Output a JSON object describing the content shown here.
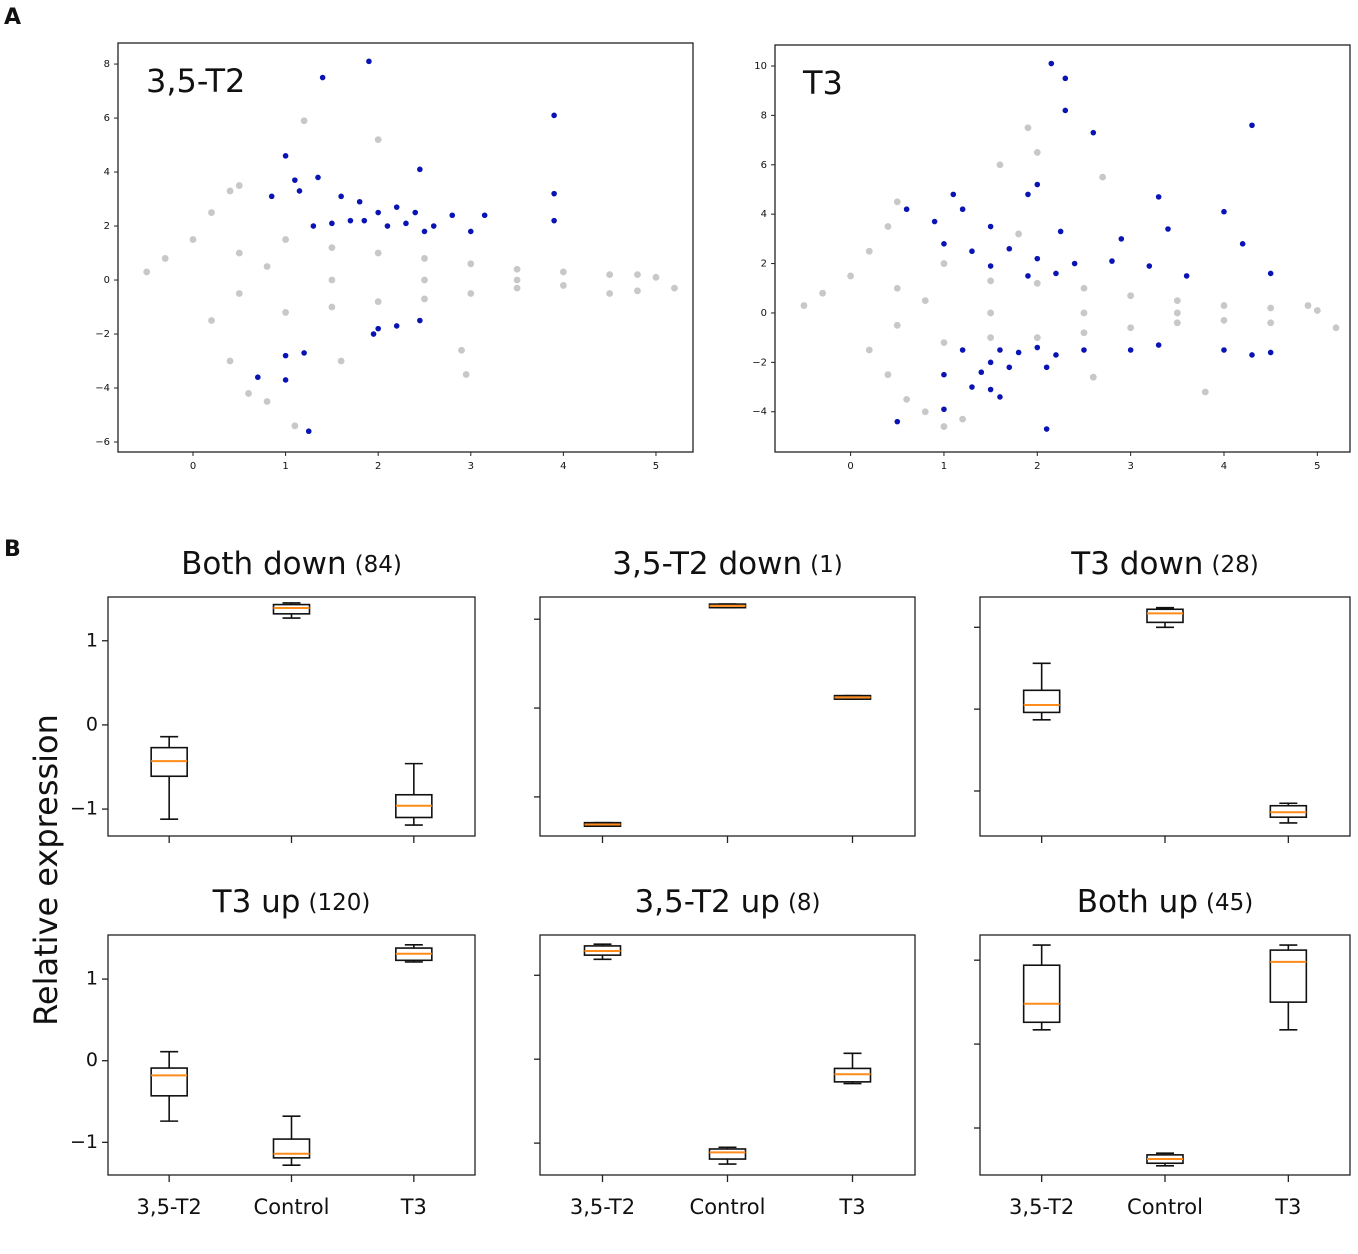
{
  "figure": {
    "panels": [
      "A",
      "B"
    ],
    "ylabel": "Relative expression"
  },
  "chart_data": [
    {
      "type": "scatter",
      "label": "3,5-T2",
      "xlim": [
        -0.81,
        5.4
      ],
      "ylim": [
        -6.37,
        8.78
      ],
      "xticks": [
        0,
        1,
        2,
        3,
        4,
        5
      ],
      "yticks": [
        {
          "value": -6,
          "label": "−6"
        },
        {
          "value": -4,
          "label": "−4"
        },
        {
          "value": -2,
          "label": "−2"
        },
        0,
        2,
        4,
        6,
        8
      ],
      "series": [
        {
          "color": "#c8c8c8",
          "x": [
            -0.5,
            -0.3,
            0,
            0.2,
            0.4,
            0.5,
            0.2,
            0.4,
            0.6,
            0.8,
            0.5,
            0.5,
            1,
            1,
            1.5,
            1.5,
            2,
            2,
            2.5,
            2.5,
            3,
            3,
            3.5,
            3.5,
            4,
            4,
            4.5,
            4.5,
            5,
            5.2,
            1.5,
            2.5,
            3.5,
            0.8,
            1.2,
            2,
            1.6,
            2.9,
            2.95,
            1.1,
            4.8,
            4.8
          ],
          "values": [
            0.3,
            0.8,
            1.5,
            2.5,
            3.3,
            3.5,
            -1.5,
            -3,
            -4.2,
            -4.5,
            1,
            -0.5,
            1.5,
            -1.2,
            1.2,
            -1,
            1,
            -0.8,
            0.8,
            -0.7,
            0.6,
            -0.5,
            0.4,
            -0.3,
            0.3,
            -0.2,
            0.2,
            -0.5,
            0.1,
            -0.3,
            0,
            0,
            0,
            0.5,
            5.9,
            5.2,
            -3,
            -2.6,
            -3.5,
            -5.4,
            0.2,
            -0.4
          ]
        },
        {
          "color": "#0a14b4",
          "x": [
            1.4,
            1.9,
            3.9,
            1,
            2.45,
            1.1,
            1.35,
            1.15,
            3.9,
            0.85,
            1.6,
            1.8,
            2,
            2.2,
            2.4,
            1.7,
            1.85,
            2.1,
            2.3,
            2.6,
            2.8,
            3.15,
            3.9,
            2.5,
            3,
            1.3,
            1.5,
            2,
            2.2,
            2.45,
            1.95,
            1,
            1.2,
            0.7,
            1,
            1.25
          ],
          "values": [
            7.5,
            8.1,
            6.1,
            4.6,
            4.1,
            3.7,
            3.8,
            3.3,
            3.2,
            3.1,
            3.1,
            2.9,
            2.5,
            2.7,
            2.5,
            2.2,
            2.2,
            2,
            2.1,
            2,
            2.4,
            2.4,
            2.2,
            1.8,
            1.8,
            2,
            2.1,
            -1.8,
            -1.7,
            -1.5,
            -2,
            -2.8,
            -2.7,
            -3.6,
            -3.7,
            -5.6
          ]
        }
      ]
    },
    {
      "type": "scatter",
      "label": "T3",
      "xlim": [
        -0.81,
        5.35
      ],
      "ylim": [
        -5.63,
        10.85
      ],
      "xticks": [
        0,
        1,
        2,
        3,
        4,
        5
      ],
      "yticks": [
        {
          "value": -4,
          "label": "−4"
        },
        {
          "value": -2,
          "label": "−2"
        },
        0,
        2,
        4,
        6,
        8,
        10
      ],
      "series": [
        {
          "color": "#c8c8c8",
          "x": [
            -0.5,
            -0.3,
            0,
            0.2,
            0.4,
            0.5,
            0.2,
            0.4,
            0.6,
            0.8,
            1,
            0.5,
            0.5,
            1,
            1,
            1.5,
            1.5,
            2,
            2,
            2.5,
            2.5,
            3,
            3,
            3.5,
            3.5,
            4,
            4,
            4.5,
            4.5,
            5,
            5.2,
            1.5,
            2.5,
            3.5,
            0.8,
            1.9,
            2,
            1.6,
            2.7,
            3.8,
            1.2,
            4.9,
            1.8,
            2.6
          ],
          "values": [
            0.3,
            0.8,
            1.5,
            2.5,
            3.5,
            4.5,
            -1.5,
            -2.5,
            -3.5,
            -4,
            -4.6,
            1,
            -0.5,
            2,
            -1.2,
            1.3,
            -1,
            1.2,
            -1,
            1,
            -0.8,
            0.7,
            -0.6,
            0.5,
            -0.4,
            0.3,
            -0.3,
            0.2,
            -0.4,
            0.1,
            -0.6,
            0,
            0,
            0,
            0.5,
            7.5,
            6.5,
            6,
            5.5,
            -3.2,
            -4.3,
            0.3,
            3.2,
            -2.6
          ]
        },
        {
          "color": "#0a14b4",
          "x": [
            2.15,
            2.3,
            2.3,
            4.3,
            2.6,
            1.1,
            1.9,
            2,
            3.3,
            4,
            0.6,
            0.9,
            1.2,
            1.5,
            2.25,
            2.9,
            3.4,
            1,
            1.3,
            1.7,
            2,
            2.4,
            2.8,
            3.2,
            3.6,
            4.2,
            4.5,
            1.5,
            2.2,
            1.9,
            1.2,
            1.6,
            1.8,
            2,
            2.2,
            1.5,
            1.7,
            2.1,
            1,
            1.4,
            2.5,
            3,
            3.3,
            4,
            4.3,
            4.5,
            0.5,
            1,
            1.6,
            2.1,
            1.5,
            1.3
          ],
          "values": [
            10.1,
            9.5,
            8.2,
            7.6,
            7.3,
            4.8,
            4.8,
            5.2,
            4.7,
            4.1,
            4.2,
            3.7,
            4.2,
            3.5,
            3.3,
            3,
            3.4,
            2.8,
            2.5,
            2.6,
            2.2,
            2,
            2.1,
            1.9,
            1.5,
            2.8,
            1.6,
            1.9,
            1.6,
            1.5,
            -1.5,
            -1.5,
            -1.6,
            -1.4,
            -1.7,
            -2,
            -2.2,
            -2.2,
            -2.5,
            -2.4,
            -1.5,
            -1.5,
            -1.3,
            -1.5,
            -1.7,
            -1.6,
            -4.4,
            -3.9,
            -3.4,
            -4.7,
            -3.1,
            -3
          ]
        }
      ]
    },
    {
      "type": "box",
      "title": "Both  down",
      "count": "(84)",
      "categories": [
        null,
        null,
        null
      ],
      "ylim": [
        -1.32,
        1.52
      ],
      "yticks": [
        {
          "value": -1,
          "label": "−1"
        },
        0,
        1
      ],
      "ytick_labels": true,
      "whisker_low": [
        -1.12,
        1.27,
        -1.19
      ],
      "q1": [
        -0.61,
        1.32,
        -1.1
      ],
      "median": [
        -0.43,
        1.39,
        -0.96
      ],
      "q3": [
        -0.27,
        1.43,
        -0.83
      ],
      "whisker_high": [
        -0.14,
        1.45,
        -0.46
      ]
    },
    {
      "type": "box",
      "title": "3,5-T2  down",
      "count": "(1)",
      "categories": [
        null,
        null,
        null
      ],
      "ylim": [
        -1.44,
        1.25
      ],
      "yticks": [
        -1,
        0,
        1
      ],
      "ytick_labels": false,
      "whisker_low": [
        -1.33,
        1.13,
        0.1
      ],
      "q1": [
        -1.33,
        1.13,
        0.1
      ],
      "median": [
        -1.31,
        1.15,
        0.12
      ],
      "q3": [
        -1.29,
        1.17,
        0.14
      ],
      "whisker_high": [
        -1.29,
        1.17,
        0.14
      ]
    },
    {
      "type": "box",
      "title": "T3  down",
      "count": "(28)",
      "categories": [
        null,
        null,
        null
      ],
      "ylim": [
        -1.55,
        1.37
      ],
      "yticks": [
        -1,
        0,
        1
      ],
      "ytick_labels": false,
      "whisker_low": [
        -0.13,
        1.0,
        -1.39
      ],
      "q1": [
        -0.04,
        1.06,
        -1.32
      ],
      "median": [
        0.05,
        1.17,
        -1.26
      ],
      "q3": [
        0.23,
        1.22,
        -1.18
      ],
      "whisker_high": [
        0.56,
        1.24,
        -1.15
      ]
    },
    {
      "type": "box",
      "title": "T3  up",
      "count": "(120)",
      "categories": [
        "3,5-T2",
        "Control",
        "T3"
      ],
      "ylim": [
        -1.4,
        1.54
      ],
      "yticks": [
        {
          "value": -1,
          "label": "−1"
        },
        0,
        1
      ],
      "ytick_labels": true,
      "whisker_low": [
        -0.74,
        -1.28,
        1.21
      ],
      "q1": [
        -0.43,
        -1.19,
        1.23
      ],
      "median": [
        -0.18,
        -1.14,
        1.31
      ],
      "q3": [
        -0.09,
        -0.96,
        1.38
      ],
      "whisker_high": [
        0.11,
        -0.68,
        1.42
      ]
    },
    {
      "type": "box",
      "title": "3,5-T2  up",
      "count": "(8)",
      "categories": [
        "3,5-T2",
        "Control",
        "T3"
      ],
      "ylim": [
        -1.38,
        1.48
      ],
      "yticks": [
        -1,
        0,
        1
      ],
      "ytick_labels": false,
      "whisker_low": [
        1.19,
        -1.25,
        -0.29
      ],
      "q1": [
        1.24,
        -1.19,
        -0.27
      ],
      "median": [
        1.29,
        -1.11,
        -0.18
      ],
      "q3": [
        1.35,
        -1.07,
        -0.11
      ],
      "whisker_high": [
        1.37,
        -1.05,
        0.07
      ]
    },
    {
      "type": "box",
      "title": "Both  up",
      "count": "(45)",
      "categories": [
        "3,5-T2",
        "Control",
        "T3"
      ],
      "ylim": [
        -1.56,
        1.3
      ],
      "yticks": [
        -1,
        0,
        1
      ],
      "ytick_labels": false,
      "whisker_low": [
        0.17,
        -1.45,
        0.17
      ],
      "q1": [
        0.26,
        -1.42,
        0.5
      ],
      "median": [
        0.48,
        -1.37,
        0.98
      ],
      "q3": [
        0.94,
        -1.32,
        1.12
      ],
      "whisker_high": [
        1.18,
        -1.3,
        1.18
      ]
    }
  ]
}
